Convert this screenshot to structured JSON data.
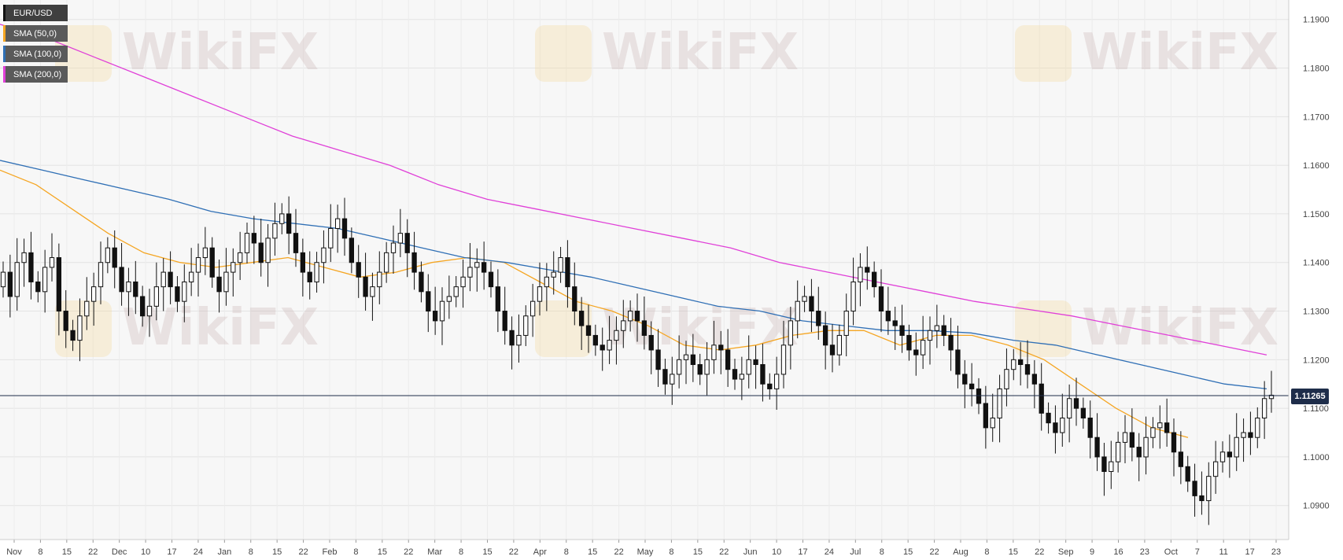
{
  "symbol": "EUR/USD",
  "watermark": "WikiFX",
  "legend": [
    {
      "label": "EUR/USD",
      "color": "#111111"
    },
    {
      "label": "SMA (50,0)",
      "color": "#f5a623"
    },
    {
      "label": "SMA (100,0)",
      "color": "#2f6fb5"
    },
    {
      "label": "SMA (200,0)",
      "color": "#e040d8"
    }
  ],
  "current_price": "1.11265",
  "chart_data": {
    "type": "candlestick",
    "y_axis": {
      "ticks": [
        "1.1900",
        "1.1800",
        "1.1700",
        "1.1600",
        "1.1500",
        "1.1400",
        "1.1300",
        "1.1200",
        "1.1100",
        "1.1000",
        "1.0900"
      ],
      "range": [
        1.083,
        1.194
      ]
    },
    "x_axis": {
      "ticks": [
        "Nov",
        "8",
        "15",
        "22",
        "Dec",
        "10",
        "17",
        "24",
        "Jan",
        "8",
        "15",
        "22",
        "Feb",
        "8",
        "15",
        "22",
        "Mar",
        "8",
        "15",
        "22",
        "Apr",
        "8",
        "15",
        "22",
        "May",
        "8",
        "15",
        "22",
        "Jun",
        "10",
        "17",
        "24",
        "Jul",
        "8",
        "15",
        "22",
        "Aug",
        "8",
        "15",
        "22",
        "Sep",
        "9",
        "16",
        "23",
        "Oct",
        "7",
        "11",
        "17",
        "23"
      ]
    },
    "current_price": 1.11265,
    "series": [
      {
        "name": "SMA (50,0)",
        "color": "#f5a623",
        "values": [
          1.159,
          1.156,
          1.151,
          1.146,
          1.142,
          1.14,
          1.139,
          1.14,
          1.141,
          1.139,
          1.137,
          1.138,
          1.14,
          1.141,
          1.14,
          1.136,
          1.132,
          1.13,
          1.127,
          1.123,
          1.122,
          1.123,
          1.125,
          1.126,
          1.126,
          1.123,
          1.125,
          1.125,
          1.123,
          1.12,
          1.115,
          1.11,
          1.106,
          1.104
        ]
      },
      {
        "name": "SMA (100,0)",
        "color": "#2f6fb5",
        "values": [
          1.161,
          1.159,
          1.157,
          1.155,
          1.153,
          1.1505,
          1.149,
          1.148,
          1.147,
          1.145,
          1.143,
          1.141,
          1.14,
          1.1385,
          1.137,
          1.135,
          1.133,
          1.131,
          1.13,
          1.128,
          1.127,
          1.126,
          1.126,
          1.1255,
          1.124,
          1.123,
          1.121,
          1.119,
          1.117,
          1.115,
          1.114
        ]
      },
      {
        "name": "SMA (200,0)",
        "color": "#e040d8",
        "values": [
          1.189,
          1.186,
          1.182,
          1.178,
          1.174,
          1.17,
          1.166,
          1.163,
          1.16,
          1.156,
          1.153,
          1.151,
          1.149,
          1.147,
          1.145,
          1.143,
          1.14,
          1.138,
          1.136,
          1.134,
          1.132,
          1.1305,
          1.129,
          1.127,
          1.125,
          1.123,
          1.121
        ]
      }
    ],
    "candles_close": [
      1.138,
      1.133,
      1.14,
      1.142,
      1.136,
      1.134,
      1.139,
      1.141,
      1.13,
      1.126,
      1.124,
      1.129,
      1.132,
      1.135,
      1.14,
      1.143,
      1.139,
      1.134,
      1.136,
      1.133,
      1.129,
      1.131,
      1.135,
      1.138,
      1.135,
      1.132,
      1.136,
      1.138,
      1.141,
      1.143,
      1.137,
      1.134,
      1.138,
      1.14,
      1.142,
      1.146,
      1.144,
      1.14,
      1.145,
      1.148,
      1.15,
      1.146,
      1.142,
      1.138,
      1.136,
      1.14,
      1.143,
      1.147,
      1.149,
      1.145,
      1.14,
      1.137,
      1.133,
      1.135,
      1.138,
      1.142,
      1.144,
      1.146,
      1.142,
      1.138,
      1.134,
      1.13,
      1.128,
      1.132,
      1.133,
      1.135,
      1.137,
      1.139,
      1.14,
      1.138,
      1.135,
      1.13,
      1.126,
      1.123,
      1.125,
      1.129,
      1.132,
      1.135,
      1.137,
      1.138,
      1.141,
      1.135,
      1.13,
      1.127,
      1.125,
      1.123,
      1.122,
      1.124,
      1.126,
      1.128,
      1.13,
      1.128,
      1.125,
      1.122,
      1.118,
      1.115,
      1.117,
      1.12,
      1.121,
      1.119,
      1.117,
      1.12,
      1.123,
      1.122,
      1.118,
      1.116,
      1.117,
      1.12,
      1.119,
      1.115,
      1.114,
      1.117,
      1.123,
      1.128,
      1.132,
      1.133,
      1.13,
      1.127,
      1.123,
      1.121,
      1.125,
      1.13,
      1.136,
      1.139,
      1.138,
      1.135,
      1.13,
      1.128,
      1.127,
      1.125,
      1.122,
      1.121,
      1.124,
      1.126,
      1.127,
      1.125,
      1.122,
      1.117,
      1.115,
      1.114,
      1.111,
      1.106,
      1.108,
      1.114,
      1.118,
      1.12,
      1.119,
      1.117,
      1.115,
      1.109,
      1.107,
      1.105,
      1.108,
      1.112,
      1.11,
      1.108,
      1.104,
      1.1,
      1.097,
      1.099,
      1.103,
      1.105,
      1.102,
      1.1,
      1.104,
      1.106,
      1.107,
      1.105,
      1.101,
      1.098,
      1.095,
      1.092,
      1.091,
      1.096,
      1.099,
      1.101,
      1.1,
      1.104,
      1.105,
      1.104,
      1.108,
      1.112,
      1.1127
    ]
  }
}
